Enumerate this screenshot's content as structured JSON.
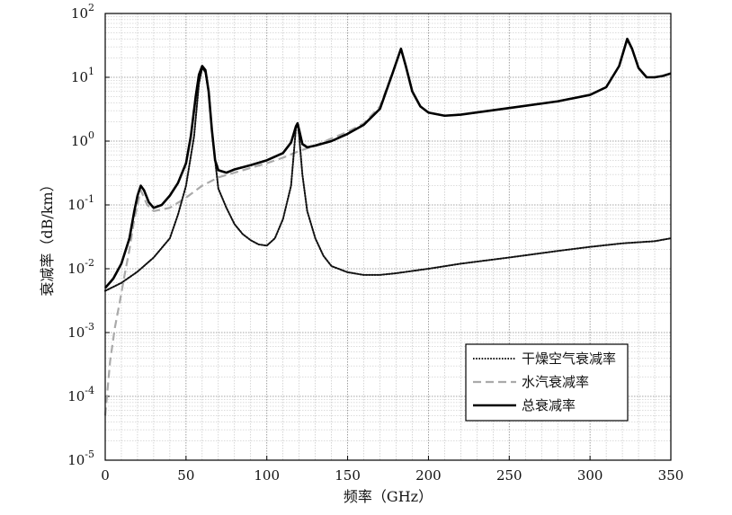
{
  "chart_data": {
    "type": "line",
    "title": "",
    "xlabel": "频率（GHz）",
    "ylabel": "衰减率（dB/km）",
    "xlim": [
      0,
      350
    ],
    "ylim_exponent": [
      -5,
      2
    ],
    "y_scale": "log",
    "grid": true,
    "x_ticks": [
      0,
      50,
      100,
      150,
      200,
      250,
      300,
      350
    ],
    "y_ticks": [
      {
        "base": "10",
        "exp": "-5"
      },
      {
        "base": "10",
        "exp": "-4"
      },
      {
        "base": "10",
        "exp": "-3"
      },
      {
        "base": "10",
        "exp": "-2"
      },
      {
        "base": "10",
        "exp": "-1"
      },
      {
        "base": "10",
        "exp": "0"
      },
      {
        "base": "10",
        "exp": "1"
      },
      {
        "base": "10",
        "exp": "2"
      }
    ],
    "legend_position": "bottom-right",
    "series": [
      {
        "name": "干燥空气衰减率",
        "style": "dotted",
        "color": "#111111",
        "points": [
          [
            0,
            0.0045
          ],
          [
            10,
            0.006
          ],
          [
            20,
            0.009
          ],
          [
            30,
            0.015
          ],
          [
            40,
            0.03
          ],
          [
            45,
            0.07
          ],
          [
            50,
            0.2
          ],
          [
            55,
            1.2
          ],
          [
            58,
            8
          ],
          [
            60,
            14
          ],
          [
            62,
            12
          ],
          [
            64,
            6
          ],
          [
            66,
            1.5
          ],
          [
            68,
            0.5
          ],
          [
            70,
            0.18
          ],
          [
            75,
            0.09
          ],
          [
            80,
            0.05
          ],
          [
            85,
            0.035
          ],
          [
            90,
            0.028
          ],
          [
            95,
            0.024
          ],
          [
            100,
            0.023
          ],
          [
            105,
            0.03
          ],
          [
            110,
            0.06
          ],
          [
            115,
            0.2
          ],
          [
            118,
            1.6
          ],
          [
            119,
            1.9
          ],
          [
            120,
            1.2
          ],
          [
            122,
            0.3
          ],
          [
            125,
            0.08
          ],
          [
            130,
            0.03
          ],
          [
            135,
            0.016
          ],
          [
            140,
            0.011
          ],
          [
            150,
            0.0088
          ],
          [
            160,
            0.008
          ],
          [
            170,
            0.008
          ],
          [
            180,
            0.0085
          ],
          [
            200,
            0.01
          ],
          [
            220,
            0.012
          ],
          [
            250,
            0.015
          ],
          [
            280,
            0.019
          ],
          [
            300,
            0.022
          ],
          [
            320,
            0.025
          ],
          [
            340,
            0.027
          ],
          [
            350,
            0.03
          ]
        ]
      },
      {
        "name": "水汽衰减率",
        "style": "dashed",
        "color": "#aaaaaa",
        "points": [
          [
            0,
            5e-05
          ],
          [
            3,
            0.00035
          ],
          [
            6,
            0.0012
          ],
          [
            9,
            0.003
          ],
          [
            12,
            0.008
          ],
          [
            15,
            0.02
          ],
          [
            18,
            0.06
          ],
          [
            22,
            0.17
          ],
          [
            26,
            0.1
          ],
          [
            30,
            0.08
          ],
          [
            40,
            0.09
          ],
          [
            50,
            0.13
          ],
          [
            60,
            0.2
          ],
          [
            70,
            0.27
          ],
          [
            80,
            0.32
          ],
          [
            90,
            0.38
          ],
          [
            100,
            0.45
          ],
          [
            110,
            0.55
          ],
          [
            120,
            0.7
          ],
          [
            130,
            0.85
          ],
          [
            140,
            1.1
          ],
          [
            150,
            1.4
          ],
          [
            160,
            1.9
          ],
          [
            170,
            3.5
          ],
          [
            178,
            12
          ],
          [
            183,
            28
          ],
          [
            186,
            15
          ],
          [
            190,
            6
          ],
          [
            195,
            3.5
          ],
          [
            200,
            2.8
          ],
          [
            210,
            2.5
          ],
          [
            220,
            2.6
          ],
          [
            250,
            3.3
          ],
          [
            280,
            4.2
          ],
          [
            300,
            5.3
          ],
          [
            310,
            7
          ],
          [
            318,
            15
          ],
          [
            323,
            38
          ],
          [
            326,
            28
          ],
          [
            330,
            14
          ],
          [
            335,
            10
          ],
          [
            340,
            10
          ],
          [
            345,
            10.5
          ],
          [
            350,
            11.5
          ]
        ]
      },
      {
        "name": "总衰减率",
        "style": "solid",
        "color": "#000000",
        "points": [
          [
            0,
            0.005
          ],
          [
            5,
            0.007
          ],
          [
            10,
            0.012
          ],
          [
            15,
            0.03
          ],
          [
            18,
            0.08
          ],
          [
            20,
            0.14
          ],
          [
            22,
            0.2
          ],
          [
            24,
            0.17
          ],
          [
            27,
            0.11
          ],
          [
            30,
            0.09
          ],
          [
            35,
            0.1
          ],
          [
            40,
            0.14
          ],
          [
            45,
            0.22
          ],
          [
            50,
            0.45
          ],
          [
            53,
            1.2
          ],
          [
            56,
            5
          ],
          [
            58,
            11
          ],
          [
            60,
            15
          ],
          [
            62,
            13
          ],
          [
            64,
            6
          ],
          [
            66,
            1.5
          ],
          [
            68,
            0.5
          ],
          [
            70,
            0.35
          ],
          [
            75,
            0.32
          ],
          [
            80,
            0.36
          ],
          [
            90,
            0.42
          ],
          [
            100,
            0.5
          ],
          [
            110,
            0.65
          ],
          [
            115,
            0.95
          ],
          [
            118,
            1.7
          ],
          [
            119,
            1.9
          ],
          [
            120,
            1.5
          ],
          [
            122,
            0.9
          ],
          [
            125,
            0.8
          ],
          [
            130,
            0.85
          ],
          [
            140,
            1.0
          ],
          [
            150,
            1.3
          ],
          [
            160,
            1.8
          ],
          [
            170,
            3.2
          ],
          [
            178,
            12
          ],
          [
            183,
            28
          ],
          [
            186,
            15
          ],
          [
            190,
            6
          ],
          [
            195,
            3.5
          ],
          [
            200,
            2.8
          ],
          [
            210,
            2.5
          ],
          [
            220,
            2.6
          ],
          [
            250,
            3.3
          ],
          [
            280,
            4.2
          ],
          [
            300,
            5.3
          ],
          [
            310,
            7
          ],
          [
            318,
            15
          ],
          [
            323,
            40
          ],
          [
            326,
            28
          ],
          [
            330,
            14
          ],
          [
            335,
            10
          ],
          [
            340,
            10
          ],
          [
            345,
            10.5
          ],
          [
            350,
            11.5
          ]
        ]
      }
    ]
  }
}
